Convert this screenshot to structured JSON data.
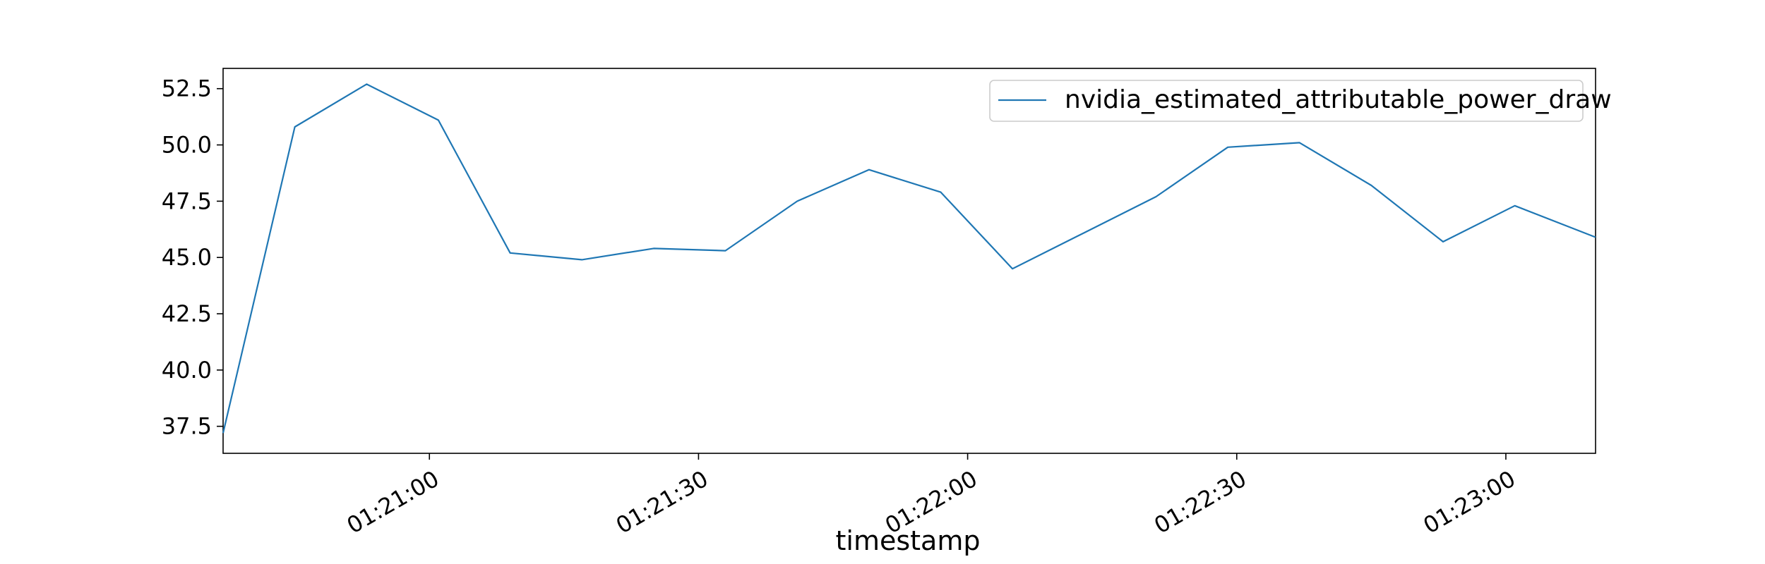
{
  "chart_data": {
    "type": "line",
    "xlabel": "timestamp",
    "ylabel": "",
    "title": "",
    "legend_position": "top-right",
    "grid": false,
    "x_tick_labels": [
      "01:21:00",
      "01:21:30",
      "01:22:00",
      "01:22:30",
      "01:23:00"
    ],
    "y_tick_labels": [
      "37.5",
      "40.0",
      "42.5",
      "45.0",
      "47.5",
      "50.0",
      "52.5"
    ],
    "x_range": [
      "01:20:37",
      "01:23:10"
    ],
    "ylim": [
      36.3,
      53.4
    ],
    "series": [
      {
        "name": "nvidia_estimated_attributable_power_draw",
        "color": "#1f77b4",
        "x": [
          "01:20:37",
          "01:20:45",
          "01:20:53",
          "01:21:01",
          "01:21:09",
          "01:21:17",
          "01:21:25",
          "01:21:33",
          "01:21:41",
          "01:21:49",
          "01:21:57",
          "01:22:05",
          "01:22:13",
          "01:22:21",
          "01:22:29",
          "01:22:37",
          "01:22:45",
          "01:22:53",
          "01:23:01",
          "01:23:10"
        ],
        "values": [
          37.2,
          50.8,
          52.7,
          51.1,
          45.2,
          44.9,
          45.4,
          45.3,
          47.5,
          48.9,
          47.9,
          44.5,
          46.1,
          47.7,
          49.9,
          50.1,
          48.2,
          45.7,
          47.3,
          45.9
        ]
      }
    ]
  }
}
